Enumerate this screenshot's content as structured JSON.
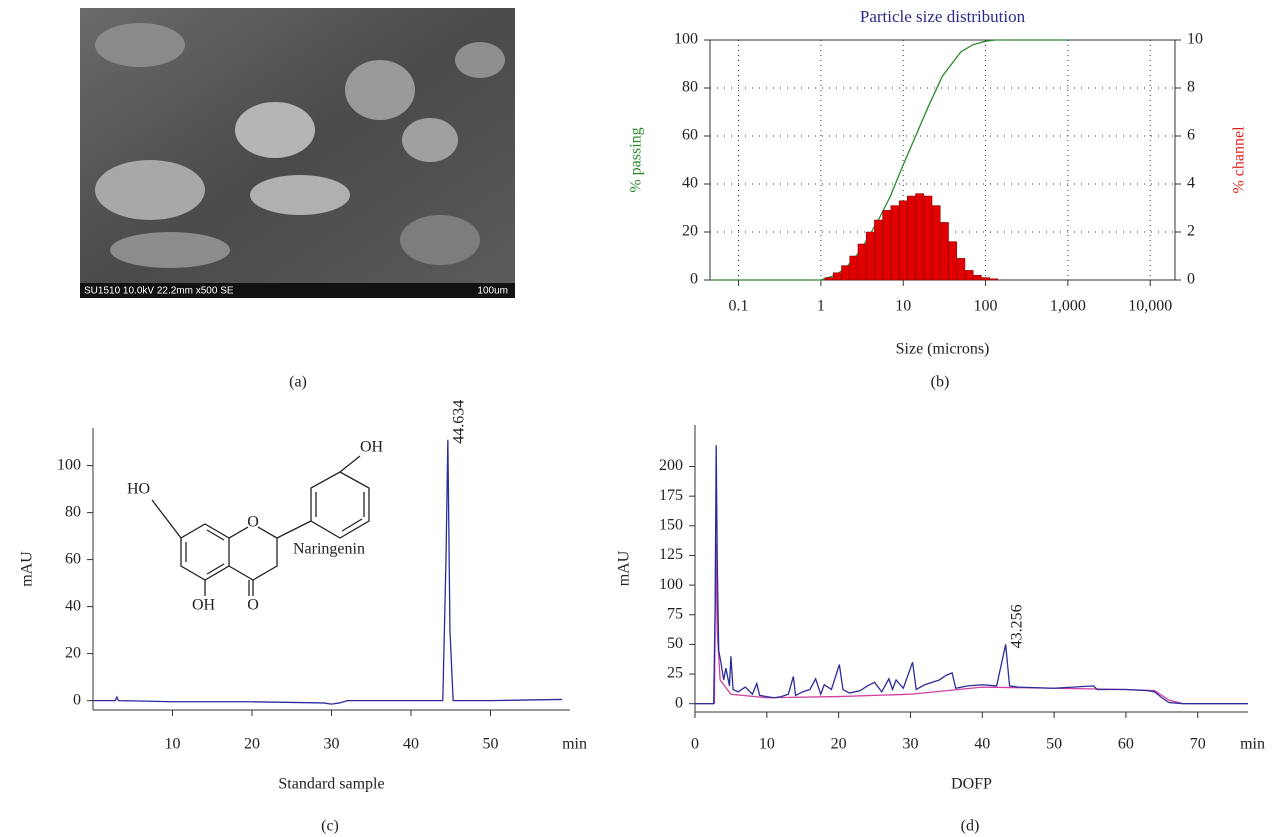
{
  "image_panel": {
    "caption": "(a)",
    "info": "SU1510 10.0kV 22.2mm x500 SE",
    "scale_label": "100um"
  },
  "structure": {
    "name": "Naringenin",
    "labels": [
      "HO",
      "OH",
      "OH",
      "O",
      "O"
    ]
  },
  "chart_data": [
    {
      "type": "line",
      "caption": "(b)",
      "title": "Particle size distribution",
      "xlabel": "Size (microns)",
      "ylabel": "% passing",
      "y2label": "% channel",
      "log_x": true,
      "grid": true,
      "frame": true,
      "xlim": [
        0.045,
        20000
      ],
      "xticks": [
        0.1,
        1,
        10,
        100,
        {
          "value": 1000,
          "label": "1,000"
        },
        {
          "value": 10000,
          "label": "10,000"
        }
      ],
      "ylim": [
        0,
        100
      ],
      "yticks": [
        0,
        20,
        40,
        60,
        80,
        100
      ],
      "y2lim": [
        0,
        10
      ],
      "y2ticks": [
        0,
        2,
        4,
        6,
        8,
        10
      ],
      "ylabel_color": "#2a8a2a",
      "y2label_color": "#e02020",
      "title_color": "#2b2b8c",
      "series": [
        {
          "color": "#2a8a2a",
          "x": [
            0.045,
            1,
            1.5,
            2,
            3,
            5,
            7,
            10,
            15,
            20,
            30,
            50,
            70,
            100,
            130,
            1000
          ],
          "values": [
            0,
            0,
            2,
            5,
            12,
            25,
            35,
            48,
            62,
            72,
            85,
            95,
            98,
            99.5,
            100,
            100
          ]
        },
        {
          "color": "#e00000",
          "type": "histogram",
          "axis": "y2",
          "bins": [
            1.12,
            1.41,
            1.78,
            2.24,
            2.82,
            3.55,
            4.47,
            5.62,
            7.08,
            8.91,
            11.2,
            14.1,
            17.8,
            22.4,
            28.2,
            35.5,
            44.7,
            56.2,
            70.8,
            89.1,
            112,
            141
          ],
          "values": [
            0.1,
            0.3,
            0.6,
            1.0,
            1.5,
            2.0,
            2.5,
            2.9,
            3.1,
            3.3,
            3.5,
            3.6,
            3.5,
            3.1,
            2.4,
            1.6,
            0.9,
            0.4,
            0.2,
            0.1,
            0.05
          ]
        }
      ]
    },
    {
      "type": "line",
      "caption": "(c)",
      "xlabel": "Standard sample",
      "ylabel": "mAU",
      "x_unit": "min",
      "xlim": [
        0,
        60
      ],
      "xticks": [
        10,
        20,
        30,
        40,
        50
      ],
      "ylim": [
        -4,
        116
      ],
      "yticks": [
        0,
        20,
        40,
        60,
        80,
        100
      ],
      "annotations": [
        {
          "text": "44.634",
          "x": 44.634,
          "y": 111
        }
      ],
      "series": [
        {
          "color": "#2b2b9c",
          "x": [
            0,
            2.8,
            3,
            3.2,
            10,
            20,
            29,
            30,
            31,
            32,
            40,
            44.0,
            44.4,
            44.634,
            44.9,
            45.3,
            50,
            59
          ],
          "values": [
            0,
            0,
            1.5,
            0,
            -0.5,
            -0.5,
            -1,
            -1.5,
            -1,
            0,
            0,
            0,
            60,
            111,
            30,
            0,
            0,
            0.5
          ]
        }
      ]
    },
    {
      "type": "line",
      "caption": "(d)",
      "xlabel": "DOFP",
      "ylabel": "mAU",
      "x_unit": "min",
      "xlim": [
        0,
        77
      ],
      "xticks": [
        0,
        10,
        20,
        30,
        40,
        50,
        60,
        70
      ],
      "ylim": [
        -7,
        235
      ],
      "yticks": [
        0,
        25,
        50,
        75,
        100,
        125,
        150,
        175,
        200
      ],
      "annotations": [
        {
          "text": "43.256",
          "x": 43.256,
          "y": 50
        }
      ],
      "series": [
        {
          "color": "#d040a0",
          "x": [
            2.7,
            2.9,
            3.1,
            3.5,
            5,
            10,
            20,
            30,
            40,
            50,
            60,
            64,
            66,
            68
          ],
          "values": [
            0,
            135,
            60,
            20,
            8,
            5,
            6,
            8,
            14,
            13,
            12,
            11,
            3,
            0
          ]
        },
        {
          "color": "#2b2b9c",
          "x": [
            0,
            2.6,
            2.8,
            2.95,
            3.1,
            3.3,
            3.6,
            4.0,
            4.3,
            4.8,
            5.0,
            5.3,
            6,
            7,
            8,
            8.6,
            9,
            10,
            11,
            12,
            13,
            13.7,
            14,
            15,
            16,
            16.8,
            17.5,
            18,
            19,
            20.1,
            20.6,
            21.5,
            23,
            24,
            25,
            26,
            27,
            27.5,
            28,
            29,
            30.3,
            30.8,
            32,
            33,
            34,
            35,
            35.8,
            36.3,
            38,
            40,
            42,
            43.256,
            43.8,
            45,
            50,
            55.5,
            56,
            60,
            63,
            64,
            65,
            66,
            68,
            77
          ],
          "values": [
            0,
            0,
            80,
            218,
            120,
            45,
            35,
            20,
            30,
            15,
            40,
            12,
            10,
            14,
            8,
            17,
            7,
            6,
            5,
            6,
            8,
            23,
            7,
            10,
            12,
            21,
            8,
            16,
            12,
            33,
            12,
            9,
            11,
            15,
            18,
            10,
            21,
            12,
            20,
            13,
            35,
            12,
            16,
            18,
            20,
            24,
            26,
            13,
            15,
            16,
            15,
            50,
            15,
            14,
            13,
            15,
            12,
            12,
            11,
            10,
            5,
            1,
            0,
            0
          ]
        }
      ]
    }
  ]
}
